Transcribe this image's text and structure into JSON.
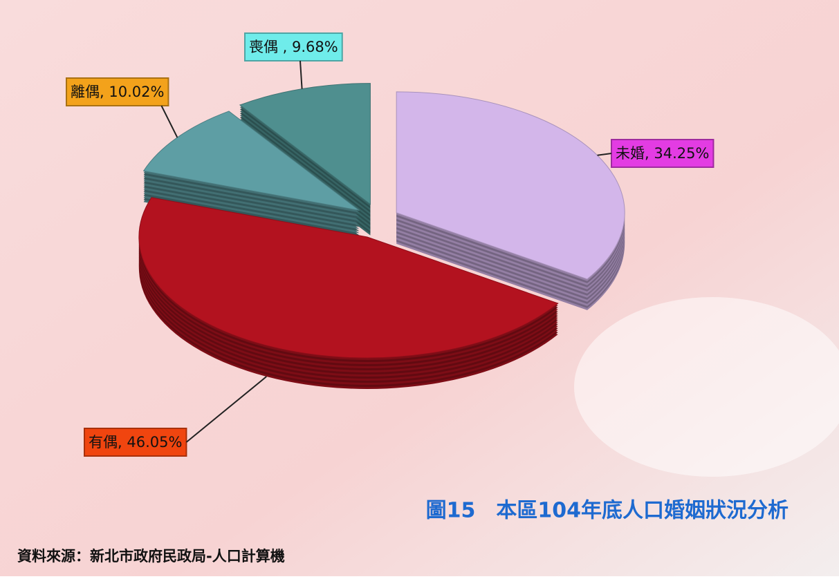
{
  "chart_data": {
    "type": "pie",
    "title": "圖15　本區104年底人口婚姻狀況分析",
    "source": "資料來源：新北市政府民政局-人口計算機",
    "categories": [
      "未婚",
      "有偶",
      "離偶",
      "喪偶"
    ],
    "values": [
      34.25,
      46.05,
      10.02,
      9.68
    ],
    "value_labels": [
      ", 34.25%",
      ", 46.05%",
      ", 10.02%",
      " , 9.68%"
    ],
    "colors": [
      "#d3b6ea",
      "#b3121f",
      "#5e9ea4",
      "#4f8f8f"
    ],
    "label_colors": [
      "#e33ce3",
      "#f0450f",
      "#f3a21b",
      "#6fecea"
    ]
  }
}
